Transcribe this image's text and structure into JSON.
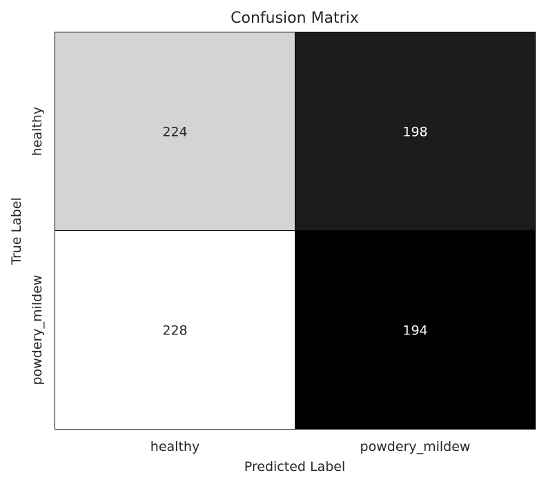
{
  "chart_data": {
    "type": "heatmap",
    "title": "Confusion Matrix",
    "xlabel": "Predicted Label",
    "ylabel": "True Label",
    "x_categories": [
      "healthy",
      "powdery_mildew"
    ],
    "y_categories": [
      "healthy",
      "powdery_mildew"
    ],
    "values": [
      [
        224,
        198
      ],
      [
        228,
        194
      ]
    ],
    "colormap": "greys",
    "colors": {
      "high": "#ffffff",
      "low": "#000000",
      "text_on_light": "#262626",
      "text_on_dark": "#ffffff"
    },
    "grid": false,
    "legend": "none"
  }
}
